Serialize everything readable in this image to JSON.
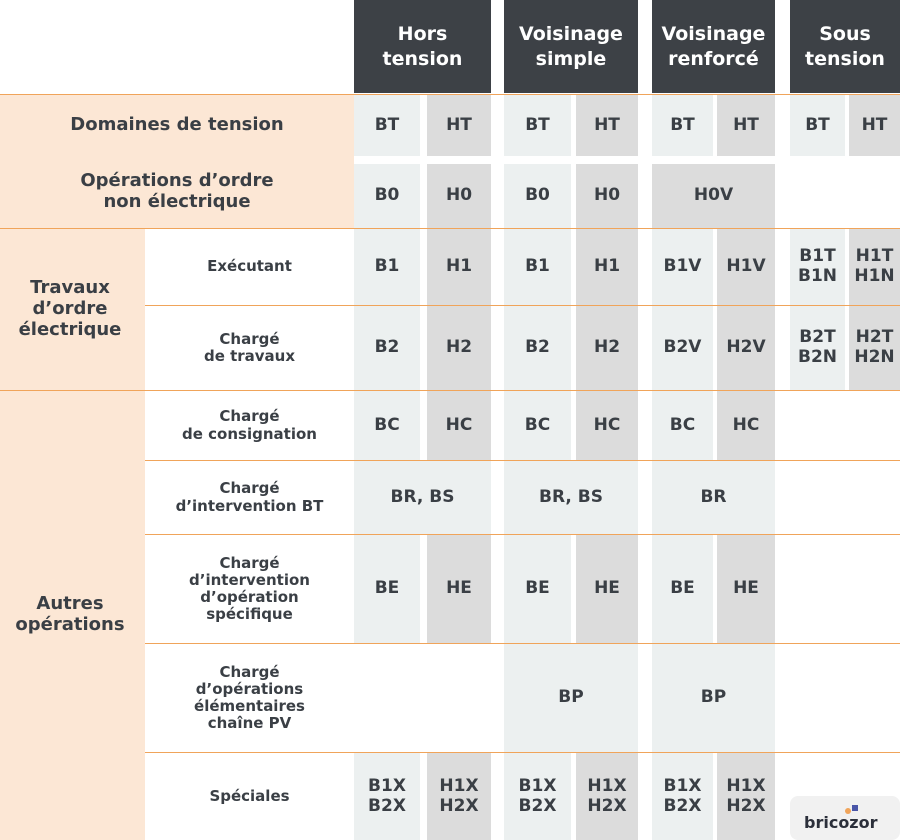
{
  "colors": {
    "header_bg": "#3d4146",
    "light_col": "#ecf0f0",
    "dark_col": "#dcdcdc",
    "peach": "#fce7d5",
    "line": "#f0a45a",
    "text": "#3a3f45"
  },
  "headers": [
    "Hors\ntension",
    "Voisinage\nsimple",
    "Voisinage\nrenforcé",
    "Sous\ntension"
  ],
  "rows": {
    "domaines": {
      "label": "Domaines de tension",
      "cells": [
        "BT",
        "HT",
        "BT",
        "HT",
        "BT",
        "HT",
        "BT",
        "HT"
      ]
    },
    "non_elec": {
      "label": "Opérations d’ordre\nnon électrique",
      "cells": [
        "B0",
        "H0",
        "B0",
        "H0",
        "H0V"
      ]
    },
    "travaux": {
      "group": "Travaux\nd’ordre\nélectrique",
      "executant": {
        "label": "Exécutant",
        "cells": [
          "B1",
          "H1",
          "B1",
          "H1",
          "B1V",
          "H1V",
          "B1T\nB1N",
          "H1T\nH1N"
        ]
      },
      "charge_travaux": {
        "label": "Chargé\nde travaux",
        "cells": [
          "B2",
          "H2",
          "B2",
          "H2",
          "B2V",
          "H2V",
          "B2T\nB2N",
          "H2T\nH2N"
        ]
      }
    },
    "autres": {
      "group": "Autres\nopérations",
      "consignation": {
        "label": "Chargé\nde consignation",
        "cells": [
          "BC",
          "HC",
          "BC",
          "HC",
          "BC",
          "HC"
        ]
      },
      "intervention_bt": {
        "label": "Chargé\nd’intervention BT",
        "cells": [
          "BR, BS",
          "BR, BS",
          "BR"
        ]
      },
      "specifique": {
        "label": "Chargé\nd’intervention\nd’opération\nspécifique",
        "cells": [
          "BE",
          "HE",
          "BE",
          "HE",
          "BE",
          "HE"
        ]
      },
      "pv": {
        "label": "Chargé\nd’opérations\nélémentaires\nchaîne PV",
        "cells": [
          "BP",
          "BP"
        ]
      },
      "speciales": {
        "label": "Spéciales",
        "cells": [
          "B1X\nB2X",
          "H1X\nH2X",
          "B1X\nB2X",
          "H1X\nH2X",
          "B1X\nB2X",
          "H1X\nH2X"
        ]
      }
    }
  },
  "logo": {
    "text": "bricozor",
    "icon": "bricozor-logo-icon"
  }
}
